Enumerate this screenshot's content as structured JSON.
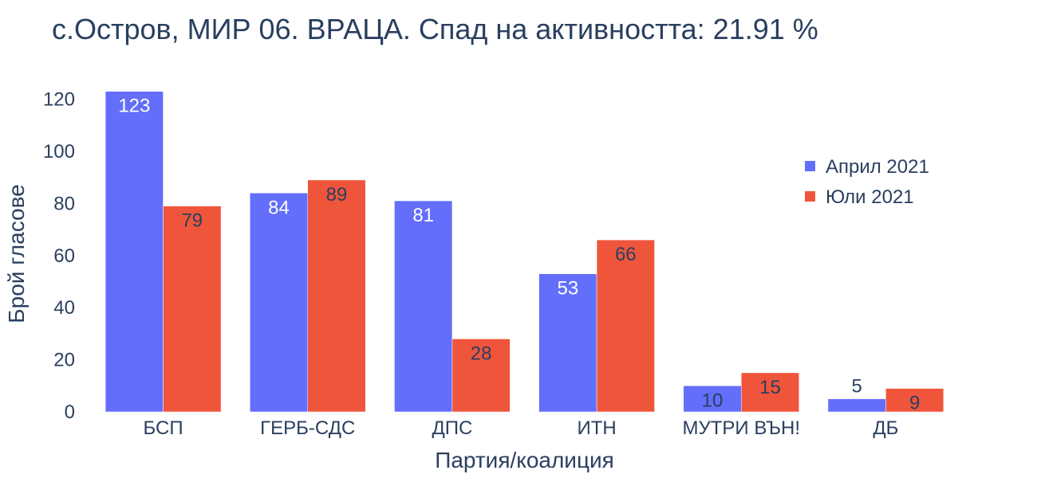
{
  "chart_data": {
    "type": "bar",
    "title": "с.Остров, МИР 06. ВРАЦА. Спад на активността: 21.91 %",
    "xlabel": "Партия/коалиция",
    "ylabel": "Брой гласове",
    "categories": [
      "БСП",
      "ГЕРБ-СДС",
      "ДПС",
      "ИТН",
      "МУТРИ ВЪН!",
      "ДБ"
    ],
    "series": [
      {
        "name": "Април 2021",
        "color": "#636efa",
        "values": [
          123,
          84,
          81,
          53,
          10,
          5
        ]
      },
      {
        "name": "Юли 2021",
        "color": "#ef553b",
        "values": [
          79,
          89,
          28,
          66,
          15,
          9
        ]
      }
    ],
    "ylim": [
      0,
      120
    ],
    "yticks": [
      0,
      20,
      40,
      60,
      80,
      100,
      120
    ],
    "grid": false,
    "legend_position": "top-right"
  }
}
